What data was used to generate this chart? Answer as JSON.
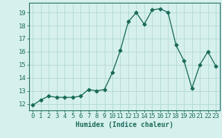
{
  "title": "",
  "xlabel": "Humidex (Indice chaleur)",
  "ylabel": "",
  "x": [
    0,
    1,
    2,
    3,
    4,
    5,
    6,
    7,
    8,
    9,
    10,
    11,
    12,
    13,
    14,
    15,
    16,
    17,
    18,
    19,
    20,
    21,
    22,
    23
  ],
  "y": [
    11.9,
    12.3,
    12.6,
    12.5,
    12.5,
    12.5,
    12.6,
    13.1,
    13.0,
    13.1,
    14.4,
    16.1,
    18.3,
    19.0,
    18.1,
    19.2,
    19.3,
    19.0,
    16.5,
    15.3,
    13.2,
    15.0,
    16.0,
    14.9
  ],
  "line_color": "#1a6b5a",
  "bg_color": "#d6f0ee",
  "grid_color": "#b0d8d4",
  "tick_color": "#1a6b5a",
  "label_color": "#1a6b5a",
  "ylim": [
    11.5,
    19.75
  ],
  "xlim": [
    -0.5,
    23.5
  ],
  "yticks": [
    12,
    13,
    14,
    15,
    16,
    17,
    18,
    19
  ],
  "xticks": [
    0,
    1,
    2,
    3,
    4,
    5,
    6,
    7,
    8,
    9,
    10,
    11,
    12,
    13,
    14,
    15,
    16,
    17,
    18,
    19,
    20,
    21,
    22,
    23
  ],
  "xtick_labels": [
    "0",
    "1",
    "2",
    "3",
    "4",
    "5",
    "6",
    "7",
    "8",
    "9",
    "10",
    "11",
    "12",
    "13",
    "14",
    "15",
    "16",
    "17",
    "18",
    "19",
    "20",
    "21",
    "22",
    "23"
  ],
  "marker": "D",
  "marker_size": 2.5,
  "line_width": 1.0,
  "xlabel_fontsize": 7,
  "tick_fontsize": 6.5
}
